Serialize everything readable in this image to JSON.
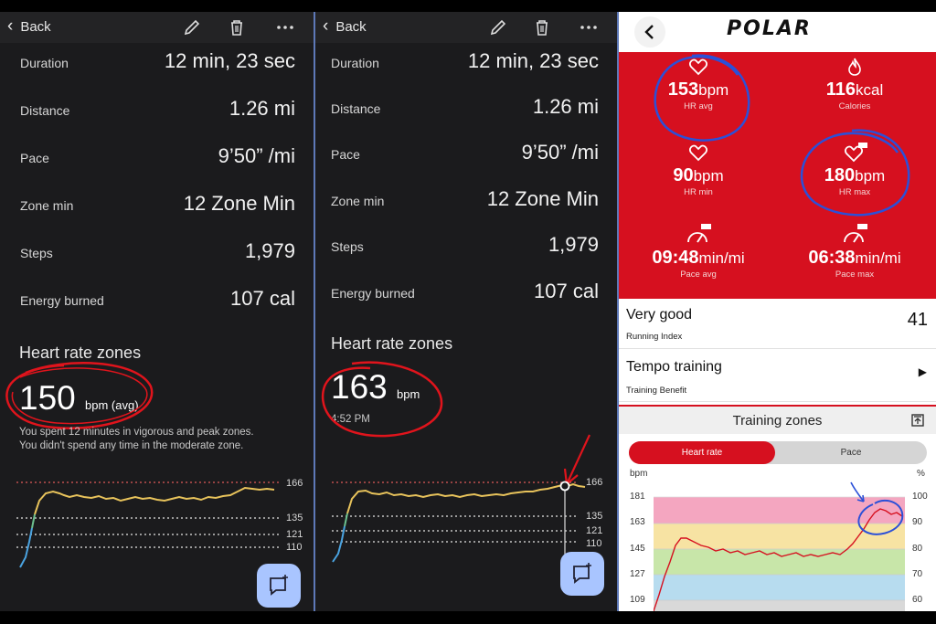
{
  "panel_a": {
    "back_label": "Back",
    "stats": [
      {
        "label": "Duration",
        "value": "12 min, 23 sec"
      },
      {
        "label": "Distance",
        "value": "1.26 mi"
      },
      {
        "label": "Pace",
        "value": "9’50” /mi"
      },
      {
        "label": "Zone min",
        "value": "12 Zone Min"
      },
      {
        "label": "Steps",
        "value": "1,979"
      },
      {
        "label": "Energy burned",
        "value": "107 cal"
      }
    ],
    "hr_title": "Heart rate zones",
    "hr_value": "150",
    "hr_unit": "bpm (avg)",
    "summary_1": "You spent 12 minutes in vigorous and peak zones.",
    "summary_2": "You didn't spend any time in the moderate zone.",
    "ticks": [
      "166",
      "135",
      "121",
      "110"
    ]
  },
  "panel_b": {
    "back_label": "Back",
    "stats": [
      {
        "label": "Duration",
        "value": "12 min, 23 sec"
      },
      {
        "label": "Distance",
        "value": "1.26 mi"
      },
      {
        "label": "Pace",
        "value": "9’50” /mi"
      },
      {
        "label": "Zone min",
        "value": "12 Zone Min"
      },
      {
        "label": "Steps",
        "value": "1,979"
      },
      {
        "label": "Energy burned",
        "value": "107 cal"
      }
    ],
    "hr_title": "Heart rate zones",
    "hr_value": "163",
    "hr_unit": "bpm",
    "time": "4:52 PM",
    "ticks": [
      "166",
      "135",
      "121",
      "110"
    ]
  },
  "panel_c": {
    "logo": "POLAR",
    "stats": [
      {
        "value": "153",
        "unit": "bpm",
        "label": "HR avg",
        "icon": "heart-icon"
      },
      {
        "value": "116",
        "unit": "kcal",
        "label": "Calories",
        "icon": "flame-icon"
      },
      {
        "value": "90",
        "unit": "bpm",
        "label": "HR min",
        "icon": "heart-icon"
      },
      {
        "value": "180",
        "unit": "bpm",
        "label": "HR max",
        "icon": "heart-max-icon"
      },
      {
        "value": "09:48",
        "unit": "min/mi",
        "label": "Pace avg",
        "icon": "gauge-avg-icon"
      },
      {
        "value": "06:38",
        "unit": "min/mi",
        "label": "Pace max",
        "icon": "gauge-max-icon"
      }
    ],
    "running_index": {
      "title": "Very good",
      "sub": "Running Index",
      "value": "41"
    },
    "training_benefit": {
      "title": "Tempo training",
      "sub": "Training Benefit"
    },
    "zones_title": "Training zones",
    "tab_active": "Heart rate",
    "tab_inactive": "Pace",
    "y_left_label": "bpm",
    "y_right_label": "%",
    "y_left_ticks": [
      "181",
      "163",
      "145",
      "127",
      "109"
    ],
    "y_right_ticks": [
      "100",
      "90",
      "80",
      "70",
      "60"
    ],
    "colors": {
      "red": "#d6101f",
      "zone5": "#f4a6c0",
      "zone4": "#f7e3a3",
      "zone3": "#c8e6a9",
      "zone2": "#b7dcef",
      "zone1": "#d9d9d9"
    }
  }
}
